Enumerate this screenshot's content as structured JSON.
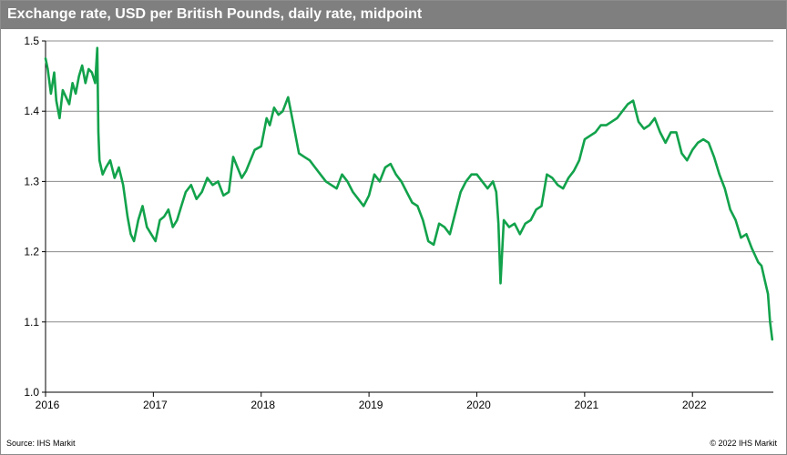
{
  "header": {
    "title": "Exchange rate, USD per British Pounds, daily rate, midpoint"
  },
  "footer": {
    "source": "Source: IHS Markit",
    "copyright": "© 2022  IHS Markit"
  },
  "chart_data": {
    "type": "line",
    "title": "Exchange rate, USD per British Pounds, daily rate, midpoint",
    "xlabel": "",
    "ylabel": "",
    "xlim": [
      2016.0,
      2022.75
    ],
    "ylim": [
      1.0,
      1.5
    ],
    "yticks": [
      1.0,
      1.1,
      1.2,
      1.3,
      1.4,
      1.5
    ],
    "ytick_labels": [
      "1.0",
      "1.1",
      "1.2",
      "1.3",
      "1.4",
      "1.5"
    ],
    "xticks": [
      2016,
      2017,
      2018,
      2019,
      2020,
      2021,
      2022
    ],
    "xtick_labels": [
      "2016",
      "2017",
      "2018",
      "2019",
      "2020",
      "2021",
      "2022"
    ],
    "grid": "horizontal",
    "legend": "none",
    "color": "#12a24b",
    "series": [
      {
        "name": "USD per GBP",
        "x": [
          2016.0,
          2016.02,
          2016.05,
          2016.08,
          2016.1,
          2016.13,
          2016.16,
          2016.19,
          2016.22,
          2016.25,
          2016.28,
          2016.31,
          2016.34,
          2016.37,
          2016.4,
          2016.43,
          2016.46,
          2016.48,
          2016.49,
          2016.5,
          2016.53,
          2016.56,
          2016.6,
          2016.64,
          2016.68,
          2016.72,
          2016.76,
          2016.79,
          2016.82,
          2016.86,
          2016.9,
          2016.94,
          2016.98,
          2017.02,
          2017.06,
          2017.1,
          2017.14,
          2017.18,
          2017.22,
          2017.26,
          2017.3,
          2017.35,
          2017.4,
          2017.45,
          2017.5,
          2017.55,
          2017.6,
          2017.65,
          2017.7,
          2017.74,
          2017.78,
          2017.82,
          2017.86,
          2017.9,
          2017.94,
          2018.0,
          2018.05,
          2018.08,
          2018.12,
          2018.16,
          2018.2,
          2018.25,
          2018.3,
          2018.35,
          2018.4,
          2018.45,
          2018.5,
          2018.55,
          2018.6,
          2018.65,
          2018.7,
          2018.75,
          2018.8,
          2018.85,
          2018.9,
          2018.95,
          2019.0,
          2019.05,
          2019.1,
          2019.15,
          2019.2,
          2019.25,
          2019.3,
          2019.35,
          2019.4,
          2019.45,
          2019.5,
          2019.55,
          2019.6,
          2019.65,
          2019.7,
          2019.75,
          2019.8,
          2019.85,
          2019.9,
          2019.95,
          2020.0,
          2020.05,
          2020.1,
          2020.15,
          2020.18,
          2020.2,
          2020.22,
          2020.25,
          2020.3,
          2020.35,
          2020.4,
          2020.45,
          2020.5,
          2020.55,
          2020.6,
          2020.65,
          2020.7,
          2020.75,
          2020.8,
          2020.85,
          2020.9,
          2020.95,
          2021.0,
          2021.05,
          2021.1,
          2021.15,
          2021.2,
          2021.25,
          2021.3,
          2021.35,
          2021.4,
          2021.45,
          2021.5,
          2021.55,
          2021.6,
          2021.65,
          2021.7,
          2021.75,
          2021.8,
          2021.85,
          2021.9,
          2021.95,
          2022.0,
          2022.05,
          2022.1,
          2022.15,
          2022.2,
          2022.25,
          2022.3,
          2022.35,
          2022.4,
          2022.45,
          2022.5,
          2022.55,
          2022.58,
          2022.61,
          2022.64,
          2022.67,
          2022.7,
          2022.72,
          2022.74
        ],
        "values": [
          1.475,
          1.46,
          1.425,
          1.455,
          1.415,
          1.39,
          1.43,
          1.42,
          1.41,
          1.44,
          1.425,
          1.45,
          1.465,
          1.44,
          1.46,
          1.455,
          1.44,
          1.49,
          1.37,
          1.33,
          1.31,
          1.32,
          1.33,
          1.305,
          1.32,
          1.295,
          1.25,
          1.225,
          1.215,
          1.245,
          1.265,
          1.235,
          1.225,
          1.215,
          1.245,
          1.25,
          1.26,
          1.235,
          1.245,
          1.265,
          1.285,
          1.295,
          1.275,
          1.285,
          1.305,
          1.295,
          1.3,
          1.28,
          1.285,
          1.335,
          1.32,
          1.305,
          1.315,
          1.33,
          1.345,
          1.35,
          1.39,
          1.38,
          1.405,
          1.395,
          1.4,
          1.42,
          1.38,
          1.34,
          1.335,
          1.33,
          1.32,
          1.31,
          1.3,
          1.295,
          1.29,
          1.31,
          1.3,
          1.285,
          1.275,
          1.265,
          1.28,
          1.31,
          1.3,
          1.32,
          1.325,
          1.31,
          1.3,
          1.285,
          1.27,
          1.265,
          1.245,
          1.215,
          1.21,
          1.24,
          1.235,
          1.225,
          1.255,
          1.285,
          1.3,
          1.31,
          1.31,
          1.3,
          1.29,
          1.3,
          1.285,
          1.24,
          1.155,
          1.245,
          1.235,
          1.24,
          1.225,
          1.24,
          1.245,
          1.26,
          1.265,
          1.31,
          1.305,
          1.295,
          1.29,
          1.305,
          1.315,
          1.33,
          1.36,
          1.365,
          1.37,
          1.38,
          1.38,
          1.385,
          1.39,
          1.4,
          1.41,
          1.415,
          1.385,
          1.375,
          1.38,
          1.39,
          1.37,
          1.355,
          1.37,
          1.37,
          1.34,
          1.33,
          1.345,
          1.355,
          1.36,
          1.355,
          1.335,
          1.31,
          1.29,
          1.26,
          1.245,
          1.22,
          1.225,
          1.205,
          1.195,
          1.185,
          1.18,
          1.16,
          1.14,
          1.1,
          1.075
        ]
      }
    ]
  }
}
